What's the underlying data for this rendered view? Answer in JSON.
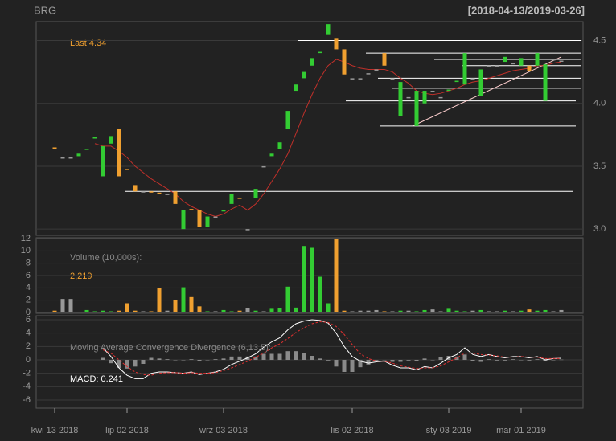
{
  "chart_data": {
    "type": "candlestick",
    "title": "BRG",
    "subtitle": "[2018-04-13/2019-03-26]",
    "last_label": "Last 4.34",
    "colors": {
      "up": "#33cc33",
      "down": "#f0a030",
      "flat": "#999999",
      "ma": "#c0302a",
      "macd": "#ffffff",
      "signal": "#e03030",
      "hist": "#8a8a8a",
      "level": "#ffffff"
    },
    "xticks": [
      {
        "value": 0,
        "label": "kwi 13 2018"
      },
      {
        "value": 9,
        "label": "lip 02 2018"
      },
      {
        "value": 21,
        "label": "wrz 03 2018"
      },
      {
        "value": 37,
        "label": "lis 02 2018"
      },
      {
        "value": 49,
        "label": "sty 03 2019"
      },
      {
        "value": 58,
        "label": "mar 01 2019"
      }
    ],
    "ylim": [
      2.95,
      4.65
    ],
    "yticks": [
      {
        "value": 3,
        "label": "3.0"
      },
      {
        "value": 3.5,
        "label": "3.5"
      },
      {
        "value": 4,
        "label": "4.0"
      },
      {
        "value": 4.5,
        "label": "4.5"
      }
    ],
    "open": [
      3.65,
      3.57,
      3.57,
      3.58,
      3.63,
      3.72,
      3.42,
      3.68,
      3.8,
      3.48,
      3.35,
      3.3,
      3.3,
      3.29,
      3.28,
      3.3,
      3.0,
      3.16,
      3.15,
      3.02,
      3.1,
      3.14,
      3.2,
      3.25,
      3.0,
      3.25,
      3.5,
      3.58,
      3.64,
      3.8,
      4.1,
      4.2,
      4.3,
      4.4,
      4.55,
      4.52,
      4.43,
      4.2,
      4.2,
      4.24,
      4.27,
      4.4,
      4.2,
      3.9,
      4.05,
      3.82,
      4.0,
      4.1,
      4.05,
      4.1,
      4.17,
      4.15,
      4.2,
      4.06,
      4.3,
      4.3,
      4.33,
      4.32,
      4.3,
      4.3,
      4.3,
      4.02,
      4.35,
      4.34
    ],
    "close": [
      3.64,
      3.57,
      3.57,
      3.6,
      3.64,
      3.73,
      3.66,
      3.74,
      3.42,
      3.47,
      3.3,
      3.3,
      3.29,
      3.28,
      3.28,
      3.2,
      3.15,
      3.15,
      3.02,
      3.1,
      3.1,
      3.15,
      3.28,
      3.24,
      3.0,
      3.32,
      3.5,
      3.6,
      3.69,
      3.94,
      4.15,
      4.25,
      4.36,
      4.41,
      4.63,
      4.43,
      4.23,
      4.2,
      4.2,
      4.24,
      4.27,
      4.3,
      4.2,
      4.17,
      4.05,
      4.1,
      4.1,
      4.1,
      4.05,
      4.11,
      4.18,
      4.4,
      4.2,
      4.27,
      4.3,
      4.3,
      4.37,
      4.32,
      4.36,
      4.26,
      4.4,
      4.31,
      4.35,
      4.34
    ],
    "ma": [
      null,
      null,
      null,
      null,
      null,
      3.68,
      3.66,
      3.66,
      3.62,
      3.57,
      3.5,
      3.45,
      3.4,
      3.36,
      3.32,
      3.28,
      3.22,
      3.18,
      3.15,
      3.12,
      3.1,
      3.12,
      3.16,
      3.19,
      3.15,
      3.2,
      3.28,
      3.38,
      3.48,
      3.6,
      3.76,
      3.92,
      4.07,
      4.2,
      4.3,
      4.35,
      4.33,
      4.3,
      4.28,
      4.27,
      4.27,
      4.27,
      4.25,
      4.2,
      4.16,
      4.1,
      4.08,
      4.07,
      4.08,
      4.1,
      4.12,
      4.15,
      4.17,
      4.18,
      4.2,
      4.22,
      4.24,
      4.26,
      4.27,
      4.28,
      4.3,
      4.3,
      4.32,
      4.33
    ],
    "levels": [
      {
        "value": 4.5,
        "from": 30.2,
        "to": 65.4
      },
      {
        "value": 4.4,
        "from": 38.7,
        "to": 65.4
      },
      {
        "value": 4.35,
        "from": 47.2,
        "to": 65.4
      },
      {
        "value": 4.3,
        "from": 50.7,
        "to": 65.4
      },
      {
        "value": 4.2,
        "from": 40.2,
        "to": 65.4
      },
      {
        "value": 4.12,
        "from": 42,
        "to": 65.4
      },
      {
        "value": 4.02,
        "from": 36.2,
        "to": 64.8
      },
      {
        "value": 3.82,
        "from": 40.4,
        "to": 64.8
      },
      {
        "value": 3.3,
        "from": 8.7,
        "to": 64.4
      }
    ],
    "trendline": {
      "x": [
        44.5,
        63
      ],
      "y": [
        3.82,
        4.37
      ]
    },
    "volume": {
      "label": "Volume (10,000s):",
      "last_label": "2,219",
      "ylim": [
        0,
        12
      ],
      "yticks": [
        0,
        2,
        4,
        6,
        8,
        10,
        12
      ],
      "values": [
        0.3,
        2.2,
        2.2,
        0.1,
        0.4,
        0.2,
        0.3,
        0.2,
        0.3,
        1.5,
        0.3,
        0.2,
        0.2,
        4.0,
        0.3,
        2.0,
        4.1,
        2.5,
        1.0,
        0.2,
        0.2,
        0.4,
        0.2,
        0.3,
        0.7,
        0.3,
        0.2,
        0.6,
        0.7,
        4.2,
        0.8,
        10.8,
        10.5,
        5.8,
        1.5,
        12.0,
        0.3,
        0.2,
        0.3,
        0.3,
        0.4,
        0.2,
        0.2,
        0.3,
        0.3,
        0.2,
        0.4,
        0.5,
        0.2,
        0.6,
        0.3,
        0.2,
        0.3,
        0.4,
        0.2,
        0.2,
        0.3,
        0.2,
        0.3,
        0.5,
        0.3,
        0.4,
        0.2,
        0.4
      ]
    },
    "macd": {
      "label": "Moving Average Convergence Divergence (6,13,5):",
      "last_label": "MACD: 0.241",
      "ylim": [
        -7.2,
        6.6
      ],
      "yticks": [
        -6,
        -4,
        -2,
        0,
        2,
        4,
        6
      ],
      "macd": [
        null,
        null,
        null,
        null,
        null,
        null,
        1.8,
        0.5,
        -1.2,
        -2.3,
        -2.8,
        -2.8,
        -2.0,
        -1.8,
        -1.8,
        -1.9,
        -2.0,
        -1.8,
        -2.2,
        -2.0,
        -1.8,
        -1.4,
        -0.7,
        -0.2,
        0.3,
        0.9,
        1.9,
        2.7,
        3.3,
        4.5,
        5.4,
        5.8,
        6.0,
        5.9,
        5.5,
        4.0,
        2.0,
        0.5,
        -0.2,
        -0.5,
        -0.3,
        -0.2,
        -0.8,
        -1.2,
        -1.2,
        -1.5,
        -1.0,
        -1.2,
        -0.5,
        0.3,
        0.8,
        1.8,
        0.8,
        0.5,
        0.8,
        0.5,
        0.3,
        0.5,
        0.5,
        0.3,
        0.5,
        0.0,
        0.2,
        0.241
      ],
      "signal": [
        null,
        null,
        null,
        null,
        null,
        null,
        1.5,
        1.0,
        0.0,
        -1.0,
        -1.8,
        -2.2,
        -2.3,
        -2.0,
        -1.9,
        -1.9,
        -2.0,
        -1.9,
        -2.0,
        -2.0,
        -1.9,
        -1.6,
        -1.2,
        -0.7,
        -0.2,
        0.4,
        1.0,
        1.8,
        2.4,
        3.2,
        4.1,
        4.8,
        5.4,
        5.7,
        5.6,
        5.0,
        3.8,
        2.3,
        0.9,
        0.2,
        -0.2,
        -0.2,
        -0.5,
        -0.9,
        -1.1,
        -1.3,
        -1.2,
        -1.2,
        -0.9,
        -0.3,
        0.3,
        1.0,
        1.0,
        0.8,
        0.7,
        0.6,
        0.4,
        0.4,
        0.5,
        0.4,
        0.4,
        0.2,
        0.2,
        0.2
      ],
      "hist": [
        null,
        null,
        null,
        null,
        null,
        null,
        0.3,
        -0.5,
        -1.2,
        -1.3,
        -1.0,
        -0.6,
        0.3,
        0.2,
        0.1,
        0,
        0,
        0.1,
        -0.2,
        0,
        0.1,
        0.2,
        0.5,
        0.5,
        0.5,
        0.5,
        0.9,
        0.9,
        0.9,
        1.3,
        1.3,
        1.0,
        0.6,
        0.2,
        -0.1,
        -1.0,
        -1.8,
        -1.8,
        -1.1,
        -0.7,
        -0.1,
        0,
        -0.3,
        -0.3,
        -0.1,
        -0.2,
        0.2,
        0,
        0.4,
        0.6,
        0.5,
        0.8,
        -0.2,
        -0.3,
        0.1,
        -0.1,
        -0.1,
        0.1,
        0,
        -0.1,
        0.1,
        -0.2,
        0,
        0.04
      ]
    }
  }
}
